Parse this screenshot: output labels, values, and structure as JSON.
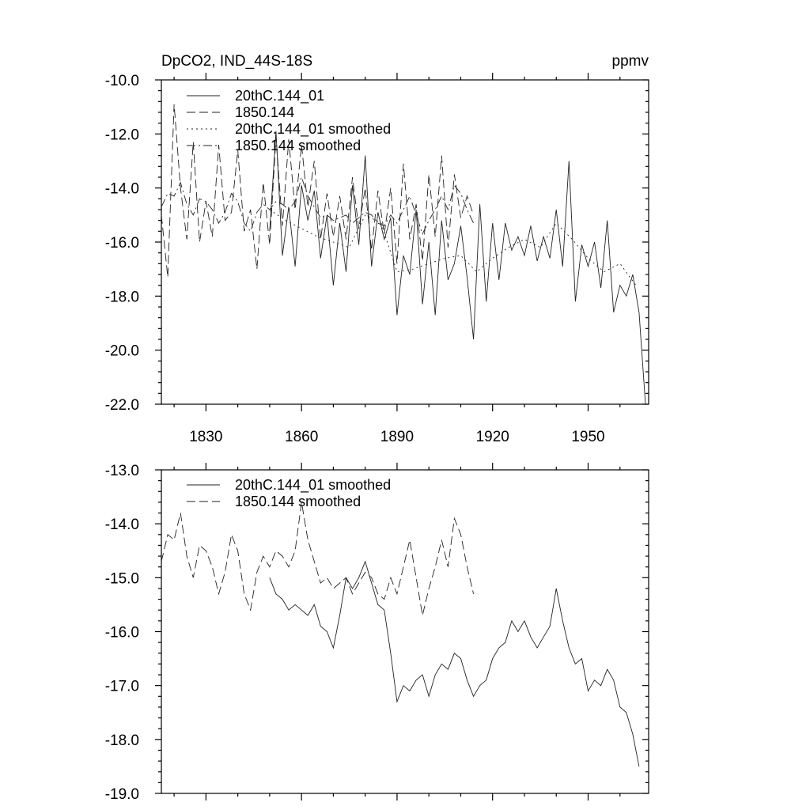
{
  "chart_data": [
    {
      "type": "line",
      "title_left": "DpCO2, IND_44S-18S",
      "title_right": "ppmv",
      "xlim": [
        1816,
        1969
      ],
      "ylim": [
        -22.0,
        -10.0
      ],
      "yticks": [
        -22.0,
        -20.0,
        -18.0,
        -16.0,
        -14.0,
        -12.0,
        -10.0
      ],
      "ytick_labels": [
        "-22.0",
        "-20.0",
        "-18.0",
        "-16.0",
        "-14.0",
        "-12.0",
        "-10.0"
      ],
      "xticks": [
        1830,
        1860,
        1890,
        1920,
        1950
      ],
      "xtick_labels": [
        "1830",
        "1860",
        "1890",
        "1920",
        "1950"
      ],
      "legend": [
        "20thC.144_01",
        "1850.144",
        "20thC.144_01 smoothed",
        "1850.144 smoothed"
      ],
      "series": [
        {
          "name": "20thC.144_01",
          "style": "solid",
          "x": [
            1850,
            1852,
            1854,
            1856,
            1858,
            1860,
            1862,
            1864,
            1866,
            1868,
            1870,
            1872,
            1874,
            1876,
            1878,
            1880,
            1882,
            1884,
            1886,
            1888,
            1890,
            1892,
            1894,
            1896,
            1898,
            1900,
            1902,
            1904,
            1906,
            1908,
            1910,
            1912,
            1914,
            1916,
            1918,
            1920,
            1922,
            1924,
            1926,
            1928,
            1930,
            1932,
            1934,
            1936,
            1938,
            1940,
            1942,
            1944,
            1946,
            1948,
            1950,
            1952,
            1954,
            1956,
            1958,
            1960,
            1962,
            1964,
            1966,
            1968
          ],
          "values": [
            -15.6,
            -11.9,
            -16.5,
            -14.7,
            -16.9,
            -13.9,
            -15.2,
            -14.1,
            -16.6,
            -15.0,
            -17.6,
            -15.3,
            -17.1,
            -13.9,
            -16.1,
            -12.8,
            -16.9,
            -14.9,
            -15.9,
            -15.1,
            -18.7,
            -16.5,
            -17.2,
            -14.8,
            -18.3,
            -16.0,
            -18.7,
            -15.2,
            -17.4,
            -16.8,
            -15.4,
            -17.3,
            -19.6,
            -14.6,
            -18.2,
            -15.3,
            -17.4,
            -15.3,
            -16.3,
            -15.8,
            -16.5,
            -15.4,
            -16.7,
            -15.8,
            -16.6,
            -14.8,
            -16.9,
            -13.0,
            -18.2,
            -16.1,
            -16.9,
            -16.0,
            -17.7,
            -15.2,
            -18.6,
            -17.6,
            -18.0,
            -17.2,
            -18.6,
            -22.0
          ]
        },
        {
          "name": "1850.144",
          "style": "dashed",
          "x": [
            1816,
            1818,
            1820,
            1822,
            1824,
            1826,
            1828,
            1830,
            1832,
            1834,
            1836,
            1838,
            1840,
            1842,
            1844,
            1846,
            1848,
            1850,
            1852,
            1854,
            1856,
            1858,
            1860,
            1862,
            1864,
            1866,
            1868,
            1870,
            1872,
            1874,
            1876,
            1878,
            1880,
            1882,
            1884,
            1886,
            1888,
            1890,
            1892,
            1894,
            1896,
            1898,
            1900,
            1902,
            1904,
            1906,
            1908,
            1910,
            1912,
            1914
          ],
          "values": [
            -15.0,
            -17.3,
            -10.9,
            -14.0,
            -15.9,
            -12.3,
            -16.0,
            -14.5,
            -15.8,
            -12.4,
            -15.2,
            -14.9,
            -12.6,
            -15.6,
            -14.8,
            -17.0,
            -13.8,
            -16.1,
            -12.1,
            -15.4,
            -12.2,
            -14.8,
            -12.4,
            -14.7,
            -13.0,
            -15.9,
            -14.2,
            -15.8,
            -14.3,
            -15.9,
            -13.6,
            -15.5,
            -14.0,
            -16.3,
            -14.1,
            -15.7,
            -14.0,
            -16.8,
            -13.1,
            -15.9,
            -14.6,
            -16.7,
            -13.5,
            -15.8,
            -12.8,
            -16.2,
            -13.5,
            -15.1,
            -14.3,
            -15.0
          ]
        },
        {
          "name": "20thC.144_01 smoothed",
          "style": "dotted",
          "x": [
            1850,
            1855,
            1860,
            1865,
            1870,
            1875,
            1880,
            1885,
            1890,
            1895,
            1900,
            1905,
            1910,
            1915,
            1920,
            1925,
            1930,
            1935,
            1940,
            1945,
            1950,
            1955,
            1960,
            1965
          ],
          "values": [
            -14.8,
            -15.2,
            -15.5,
            -15.8,
            -16.0,
            -16.2,
            -15.0,
            -15.3,
            -17.1,
            -17.0,
            -16.8,
            -16.6,
            -16.5,
            -17.1,
            -16.6,
            -16.2,
            -15.9,
            -16.2,
            -15.3,
            -15.9,
            -16.6,
            -17.1,
            -16.8,
            -17.6
          ]
        },
        {
          "name": "1850.144 smoothed",
          "style": "dashdot",
          "x": [
            1816,
            1818,
            1820,
            1822,
            1824,
            1826,
            1828,
            1830,
            1832,
            1834,
            1836,
            1838,
            1840,
            1842,
            1844,
            1846,
            1848,
            1850,
            1852,
            1854,
            1856,
            1858,
            1860,
            1862,
            1864,
            1866,
            1868,
            1870,
            1872,
            1874,
            1876,
            1878,
            1880,
            1882,
            1884,
            1886,
            1888,
            1890,
            1892,
            1894,
            1896,
            1898,
            1900,
            1902,
            1904,
            1906,
            1908,
            1910,
            1912,
            1914
          ],
          "values": [
            -14.7,
            -14.2,
            -14.3,
            -13.8,
            -14.6,
            -15.0,
            -14.4,
            -14.5,
            -14.8,
            -15.3,
            -14.9,
            -14.2,
            -14.5,
            -15.3,
            -15.6,
            -14.9,
            -14.6,
            -14.8,
            -14.5,
            -14.6,
            -14.8,
            -14.5,
            -13.6,
            -14.3,
            -14.7,
            -15.1,
            -15.0,
            -15.2,
            -15.1,
            -15.0,
            -15.3,
            -15.1,
            -14.9,
            -15.0,
            -15.3,
            -15.4,
            -15.0,
            -15.3,
            -14.8,
            -14.3,
            -15.0,
            -15.7,
            -15.2,
            -14.8,
            -14.3,
            -14.8,
            -13.9,
            -14.2,
            -14.8,
            -15.3
          ]
        }
      ]
    },
    {
      "type": "line",
      "xlim": [
        1816,
        1969
      ],
      "ylim": [
        -19.0,
        -13.0
      ],
      "yticks": [
        -19.0,
        -18.0,
        -17.0,
        -16.0,
        -15.0,
        -14.0,
        -13.0
      ],
      "ytick_labels": [
        "-19.0",
        "-18.0",
        "-17.0",
        "-16.0",
        "-15.0",
        "-14.0",
        "-13.0"
      ],
      "xticks": [
        1830,
        1860,
        1890,
        1920,
        1950
      ],
      "legend": [
        "20thC.144_01 smoothed",
        "1850.144 smoothed"
      ],
      "series": [
        {
          "name": "20thC.144_01 smoothed",
          "style": "solid",
          "x": [
            1850,
            1852,
            1854,
            1856,
            1858,
            1860,
            1862,
            1864,
            1866,
            1868,
            1870,
            1872,
            1874,
            1876,
            1878,
            1880,
            1882,
            1884,
            1886,
            1888,
            1890,
            1892,
            1894,
            1896,
            1898,
            1900,
            1902,
            1904,
            1906,
            1908,
            1910,
            1912,
            1914,
            1916,
            1918,
            1920,
            1922,
            1924,
            1926,
            1928,
            1930,
            1932,
            1934,
            1936,
            1938,
            1940,
            1942,
            1944,
            1946,
            1948,
            1950,
            1952,
            1954,
            1956,
            1958,
            1960,
            1962,
            1964,
            1966
          ],
          "values": [
            -15.0,
            -15.3,
            -15.4,
            -15.6,
            -15.5,
            -15.6,
            -15.7,
            -15.5,
            -15.9,
            -16.0,
            -16.3,
            -15.7,
            -15.0,
            -15.2,
            -15.0,
            -14.7,
            -15.1,
            -15.5,
            -15.6,
            -16.4,
            -17.3,
            -17.0,
            -17.1,
            -16.9,
            -16.8,
            -17.2,
            -16.8,
            -16.6,
            -16.7,
            -16.4,
            -16.5,
            -16.9,
            -17.2,
            -17.0,
            -16.9,
            -16.5,
            -16.3,
            -16.2,
            -15.8,
            -16.0,
            -15.8,
            -16.1,
            -16.3,
            -16.1,
            -15.9,
            -15.2,
            -15.8,
            -16.3,
            -16.6,
            -16.5,
            -17.1,
            -16.9,
            -17.0,
            -16.7,
            -16.9,
            -17.4,
            -17.5,
            -17.9,
            -18.5
          ]
        },
        {
          "name": "1850.144 smoothed",
          "style": "dashed",
          "x": [
            1816,
            1818,
            1820,
            1822,
            1824,
            1826,
            1828,
            1830,
            1832,
            1834,
            1836,
            1838,
            1840,
            1842,
            1844,
            1846,
            1848,
            1850,
            1852,
            1854,
            1856,
            1858,
            1860,
            1862,
            1864,
            1866,
            1868,
            1870,
            1872,
            1874,
            1876,
            1878,
            1880,
            1882,
            1884,
            1886,
            1888,
            1890,
            1892,
            1894,
            1896,
            1898,
            1900,
            1902,
            1904,
            1906,
            1908,
            1910,
            1912,
            1914
          ],
          "values": [
            -14.7,
            -14.2,
            -14.3,
            -13.8,
            -14.6,
            -15.0,
            -14.4,
            -14.5,
            -14.8,
            -15.3,
            -14.9,
            -14.2,
            -14.5,
            -15.3,
            -15.6,
            -14.9,
            -14.6,
            -14.8,
            -14.5,
            -14.6,
            -14.8,
            -14.5,
            -13.6,
            -14.3,
            -14.7,
            -15.1,
            -15.0,
            -15.2,
            -15.1,
            -15.0,
            -15.3,
            -15.1,
            -14.9,
            -15.0,
            -15.3,
            -15.4,
            -15.0,
            -15.3,
            -14.8,
            -14.3,
            -15.0,
            -15.7,
            -15.2,
            -14.8,
            -14.3,
            -14.8,
            -13.9,
            -14.2,
            -14.8,
            -15.3
          ]
        }
      ]
    }
  ]
}
